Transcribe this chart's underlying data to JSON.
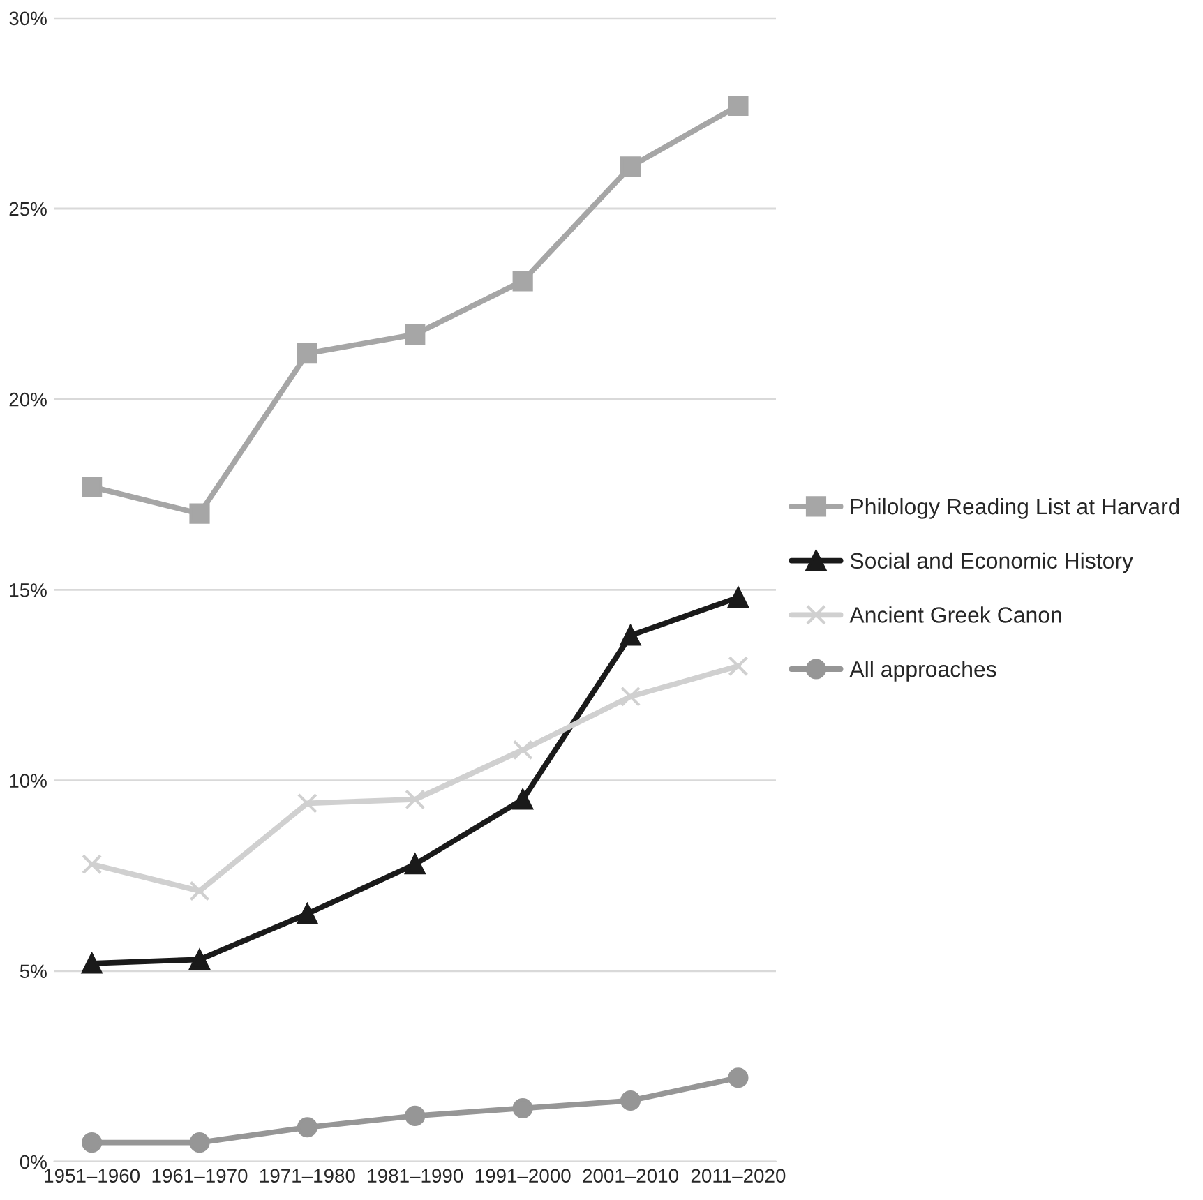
{
  "chart_data": {
    "type": "line",
    "categories": [
      "1951–1960",
      "1961–1970",
      "1971–1980",
      "1981–1990",
      "1991–2000",
      "2001–2010",
      "2011–2020"
    ],
    "series": [
      {
        "name": "Philology Reading List at Harvard",
        "color": "#a6a6a6",
        "marker": "square",
        "values": [
          17.7,
          17.0,
          21.2,
          21.7,
          23.1,
          26.1,
          27.7
        ]
      },
      {
        "name": "Social and Economic History",
        "color": "#1a1a1a",
        "marker": "triangle",
        "values": [
          5.2,
          5.3,
          6.5,
          7.8,
          9.5,
          13.8,
          14.8
        ]
      },
      {
        "name": "Ancient Greek Canon",
        "color": "#d0d0d0",
        "marker": "cross",
        "values": [
          7.8,
          7.1,
          9.4,
          9.5,
          10.8,
          12.2,
          13.0
        ]
      },
      {
        "name": "All approaches",
        "color": "#969696",
        "marker": "circle",
        "values": [
          0.5,
          0.5,
          0.9,
          1.2,
          1.4,
          1.6,
          2.2
        ]
      }
    ],
    "ylim": [
      0,
      30
    ],
    "yticks": [
      {
        "value": 0,
        "label": "0%"
      },
      {
        "value": 5,
        "label": "5%"
      },
      {
        "value": 10,
        "label": "10%"
      },
      {
        "value": 15,
        "label": "15%"
      },
      {
        "value": 20,
        "label": "20%"
      },
      {
        "value": 25,
        "label": "25%"
      },
      {
        "value": 30,
        "label": "30%"
      }
    ],
    "grid": "y",
    "legend": "right",
    "line_style": "solid"
  }
}
